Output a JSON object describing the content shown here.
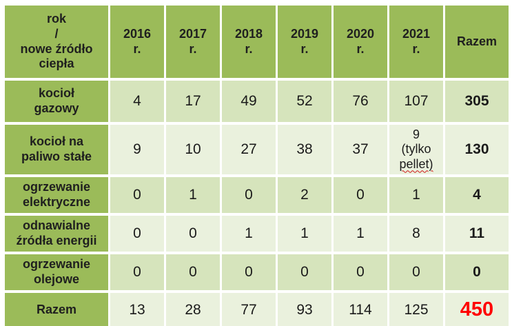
{
  "colors": {
    "header_green": "#9bbb59",
    "band_dark": "#d6e4bc",
    "band_light": "#eaf1dd",
    "grand_total_red": "#ff0000",
    "text": "#1b1b1b",
    "gridline_white": "#ffffff"
  },
  "table": {
    "corner_header": "rok\n/\nnowe źródło\nciepła",
    "year_headers": [
      "2016\nr.",
      "2017\nr.",
      "2018\nr.",
      "2019\nr.",
      "2020\nr.",
      "2021\nr."
    ],
    "total_header": "Razem",
    "rows": [
      {
        "label": "kocioł\ngazowy",
        "values": [
          "4",
          "17",
          "49",
          "52",
          "76",
          "107"
        ],
        "total": "305"
      },
      {
        "label": "kocioł na\npaliwo stałe",
        "values": [
          "9",
          "10",
          "27",
          "38",
          "37",
          {
            "full": "9 (tylko pellet)",
            "line1": "9",
            "line2": "(tylko",
            "line3_misspelled": "pellet)"
          }
        ],
        "total": "130"
      },
      {
        "label": "ogrzewanie\nelektryczne",
        "values": [
          "0",
          "1",
          "0",
          "2",
          "0",
          "1"
        ],
        "total": "4"
      },
      {
        "label": "odnawialne\nźródła energii",
        "values": [
          "0",
          "0",
          "1",
          "1",
          "1",
          "8"
        ],
        "total": "11"
      },
      {
        "label": "ogrzewanie\nolejowe",
        "values": [
          "0",
          "0",
          "0",
          "0",
          "0",
          "0"
        ],
        "total": "0"
      },
      {
        "label": "Razem",
        "values": [
          "13",
          "28",
          "77",
          "93",
          "114",
          "125"
        ],
        "total": "450"
      }
    ]
  }
}
